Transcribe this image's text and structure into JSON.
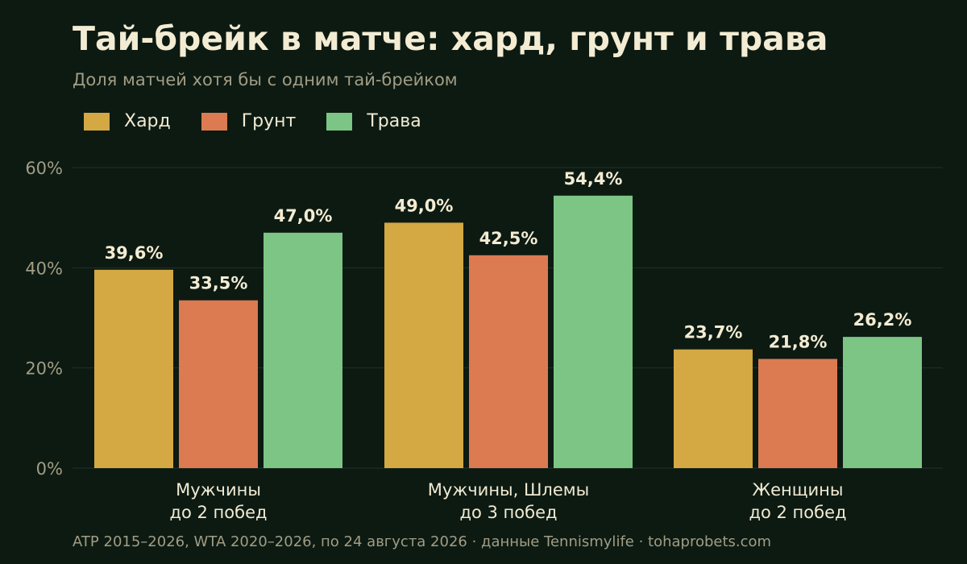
{
  "title": "Тай-брейк в матче: хард, грунт и трава",
  "subtitle": "Доля матчей хотя бы с одним тай-брейком",
  "footer": "ATP 2015–2026, WTA 2020–2026, по 24 августа 2026 · данные Tennismylife · tohaprobets.com",
  "legend": [
    {
      "label": "Хард",
      "color": "#d4a843"
    },
    {
      "label": "Грунт",
      "color": "#dc7a52"
    },
    {
      "label": "Трава",
      "color": "#7cc584"
    }
  ],
  "chart_data": {
    "type": "bar",
    "categories": [
      [
        "Мужчины",
        "до 2 побед"
      ],
      [
        "Мужчины, Шлемы",
        "до 3 побед"
      ],
      [
        "Женщины",
        "до 2 побед"
      ]
    ],
    "series": [
      {
        "name": "Хард",
        "color": "#d4a843",
        "values": [
          39.6,
          49.0,
          23.7
        ],
        "labels": [
          "39,6%",
          "49,0%",
          "23,7%"
        ]
      },
      {
        "name": "Грунт",
        "color": "#dc7a52",
        "values": [
          33.5,
          42.5,
          21.8
        ],
        "labels": [
          "33,5%",
          "42,5%",
          "21,8%"
        ]
      },
      {
        "name": "Трава",
        "color": "#7cc584",
        "values": [
          47.0,
          54.4,
          26.2
        ],
        "labels": [
          "47,0%",
          "54,4%",
          "26,2%"
        ]
      }
    ],
    "y_ticks": [
      {
        "value": 0,
        "label": "0%"
      },
      {
        "value": 20,
        "label": "20%"
      },
      {
        "value": 40,
        "label": "40%"
      },
      {
        "value": 60,
        "label": "60%"
      }
    ],
    "ylim": [
      0,
      60
    ],
    "grid": true,
    "legend_position": "top-left"
  }
}
